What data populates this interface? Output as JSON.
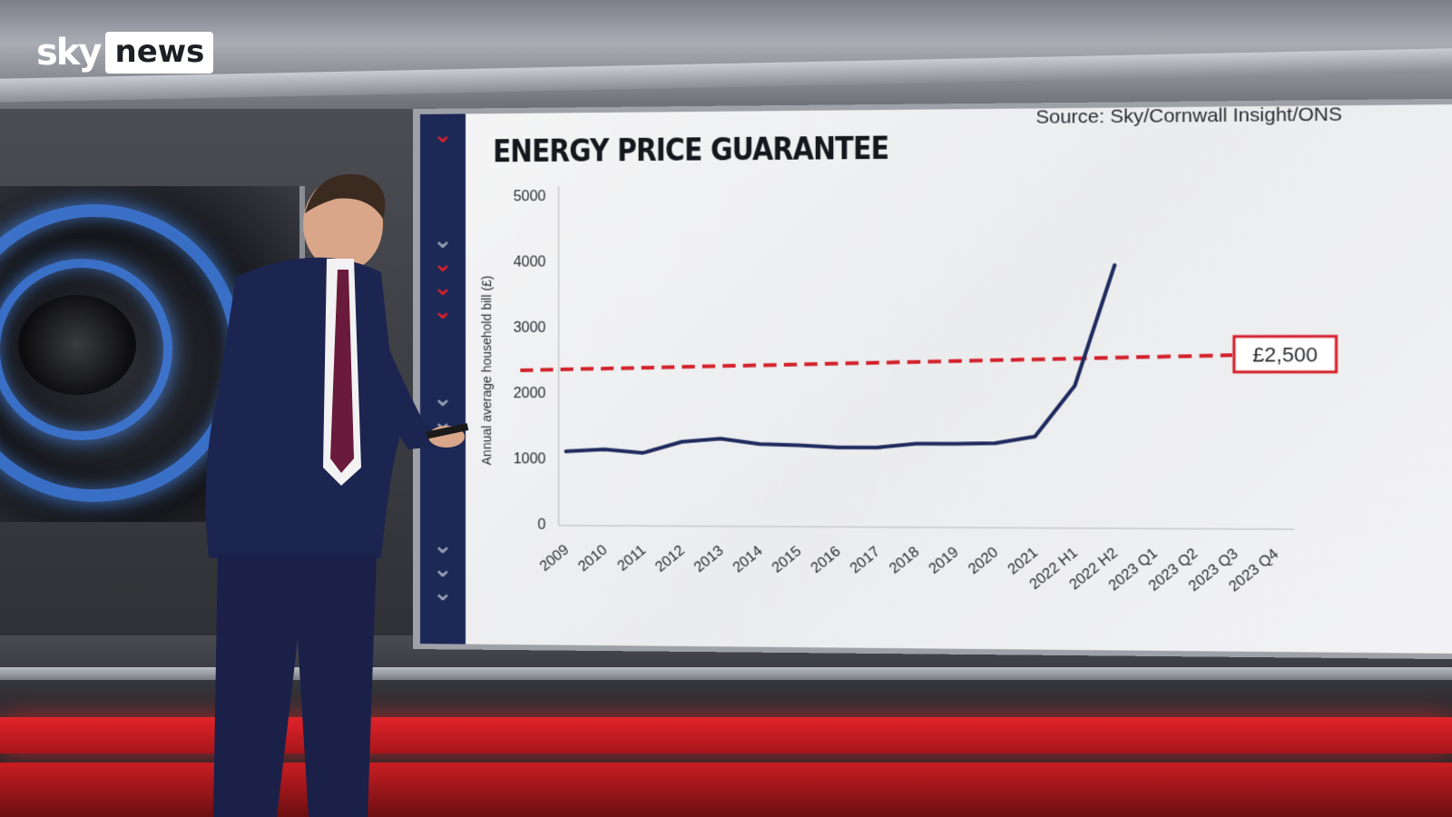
{
  "broadcaster": {
    "logo_sky": "sky",
    "logo_news": "news"
  },
  "chart_data": {
    "type": "line",
    "title": "ENERGY PRICE GUARANTEE",
    "source": "Source: Sky/Cornwall Insight/ONS",
    "xlabel": "",
    "ylabel": "Annual average household bill (£)",
    "ylim": [
      0,
      5000
    ],
    "yticks": [
      "0",
      "1000",
      "2000",
      "3000",
      "4000",
      "5000"
    ],
    "categories": [
      "2009",
      "2010",
      "2011",
      "2012",
      "2013",
      "2014",
      "2015",
      "2016",
      "2017",
      "2018",
      "2019",
      "2020",
      "2021",
      "2022 H1",
      "2022 H2",
      "2023 Q1",
      "2023 Q2",
      "2023 Q3",
      "2023 Q4"
    ],
    "series": [
      {
        "values": [
          1100,
          1130,
          1080,
          1250,
          1300,
          1220,
          1200,
          1170,
          1170,
          1230,
          1230,
          1240,
          1340,
          2100,
          3900,
          null,
          null,
          null,
          null
        ],
        "color": "#1f2a5e"
      }
    ],
    "reference_line": {
      "value": 2500,
      "label": "£2,500",
      "color": "#d3202a",
      "style": "dashed"
    },
    "grid": false,
    "legend": "none"
  }
}
